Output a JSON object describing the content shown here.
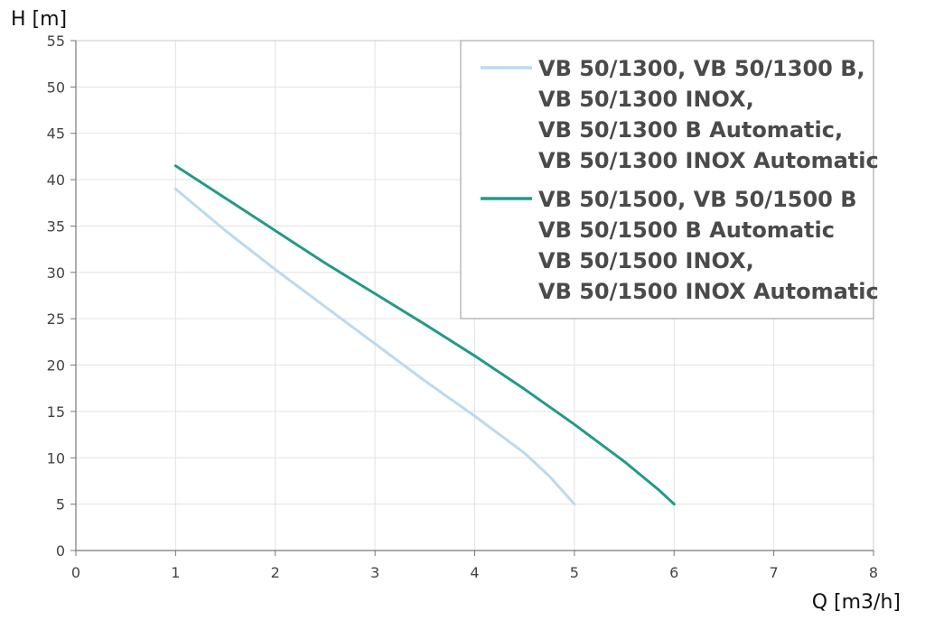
{
  "chart_data": {
    "type": "line",
    "xlabel": "Q [m3/h]",
    "ylabel": "H [m]",
    "xlim": [
      0,
      8
    ],
    "ylim": [
      0,
      55
    ],
    "xticks": [
      "0",
      "1",
      "2",
      "3",
      "4",
      "5",
      "6",
      "7",
      "8"
    ],
    "yticks": [
      "0",
      "5",
      "10",
      "15",
      "20",
      "25",
      "30",
      "35",
      "40",
      "45",
      "50",
      "55"
    ],
    "grid": true,
    "legend_position": "top-right",
    "series": [
      {
        "name_lines": [
          "VB 50/1300, VB 50/1300 B,",
          "VB 50/1300 INOX,",
          "VB 50/1300 B Automatic,",
          "VB 50/1300 INOX Automatic"
        ],
        "color": "#bcd9ee",
        "x": [
          1,
          1.5,
          2,
          2.5,
          3,
          3.5,
          4,
          4.5,
          4.75,
          5
        ],
        "y": [
          39,
          34.5,
          30.3,
          26.3,
          22.3,
          18.3,
          14.5,
          10.5,
          8,
          5
        ]
      },
      {
        "name_lines": [
          "VB 50/1500, VB 50/1500 B",
          "VB 50/1500 B Automatic",
          "VB 50/1500 INOX,",
          "VB 50/1500 INOX Automatic"
        ],
        "color": "#239a87",
        "x": [
          1,
          1.5,
          2,
          2.5,
          3,
          3.5,
          4,
          4.5,
          5,
          5.5,
          5.85,
          6
        ],
        "y": [
          41.5,
          38,
          34.5,
          31,
          27.7,
          24.4,
          21,
          17.4,
          13.6,
          9.6,
          6.5,
          5
        ]
      }
    ]
  }
}
